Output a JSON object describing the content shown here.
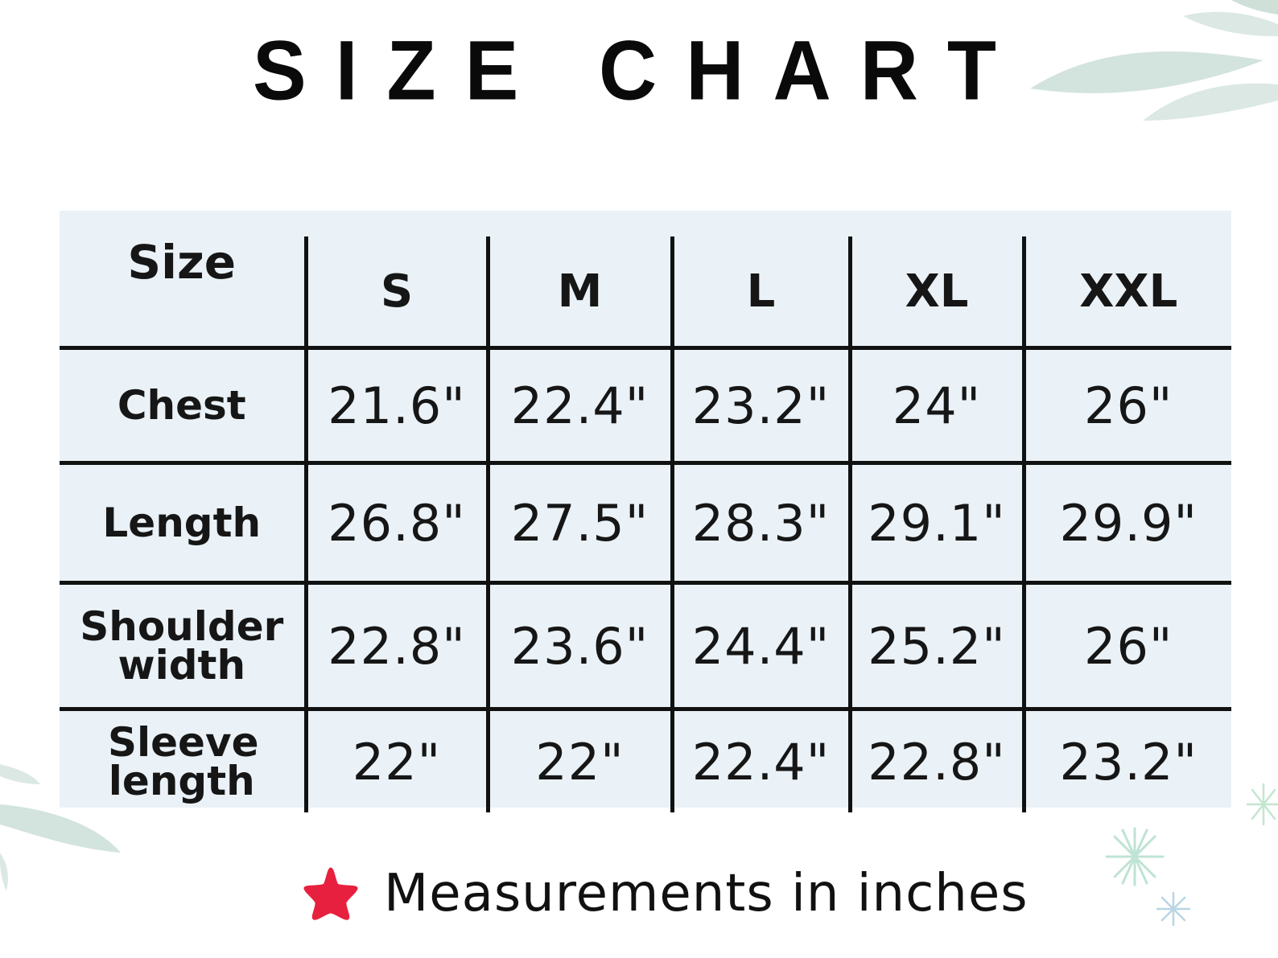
{
  "title": "SIZE CHART",
  "table": {
    "header": [
      "Size",
      "S",
      "M",
      "L",
      "XL",
      "XXL"
    ],
    "rows": [
      {
        "label": "Chest",
        "values": [
          "21.6\"",
          "22.4\"",
          "23.2\"",
          "24\"",
          "26\""
        ]
      },
      {
        "label": "Length",
        "values": [
          "26.8\"",
          "27.5\"",
          "28.3\"",
          "29.1\"",
          "29.9\""
        ]
      },
      {
        "label": "Shoulder width",
        "values": [
          "22.8\"",
          "23.6\"",
          "24.4\"",
          "25.2\"",
          "26\""
        ]
      },
      {
        "label": "Sleeve length",
        "values": [
          "22\"",
          "22\"",
          "22.4\"",
          "22.8\"",
          "23.2\""
        ]
      }
    ]
  },
  "footnote": {
    "icon": "star-icon",
    "text": "Measurements in inches"
  },
  "colors": {
    "panel": "#eaf2f7",
    "grid": "#111111",
    "star": "#e8203f",
    "leaf": "#c9ddd5"
  }
}
